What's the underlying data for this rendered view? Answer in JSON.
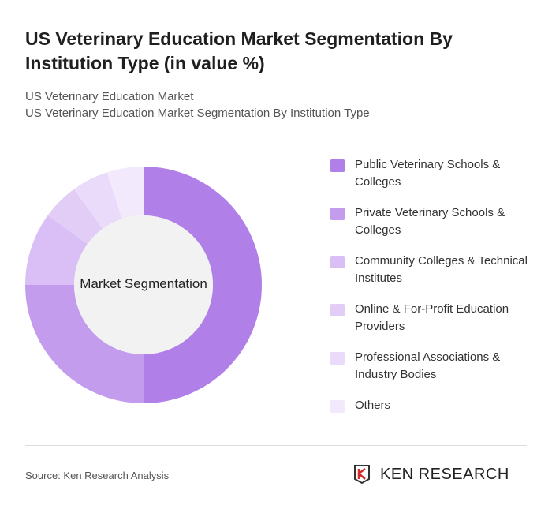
{
  "title": "US Veterinary Education Market Segmentation By Institution Type (in value %)",
  "subtitle1": "US Veterinary Education Market",
  "subtitle2": "US Veterinary Education Market Segmentation By Institution Type",
  "source": "Source: Ken Research Analysis",
  "logo_text": "KEN RESEARCH",
  "chart_data": {
    "type": "pie",
    "variant": "donut",
    "center_label": "Market Segmentation",
    "categories": [
      "Public Veterinary Schools & Colleges",
      "Private Veterinary Schools & Colleges",
      "Community Colleges & Technical Institutes",
      "Online & For-Profit Education Providers",
      "Professional Associations & Industry Bodies",
      "Others"
    ],
    "values": [
      50,
      25,
      10,
      5,
      5,
      5
    ],
    "colors": [
      "#b07fe8",
      "#c49cee",
      "#d9bff5",
      "#e2cdf7",
      "#e9dbf9",
      "#f2eafc"
    ],
    "legend_position": "right"
  }
}
